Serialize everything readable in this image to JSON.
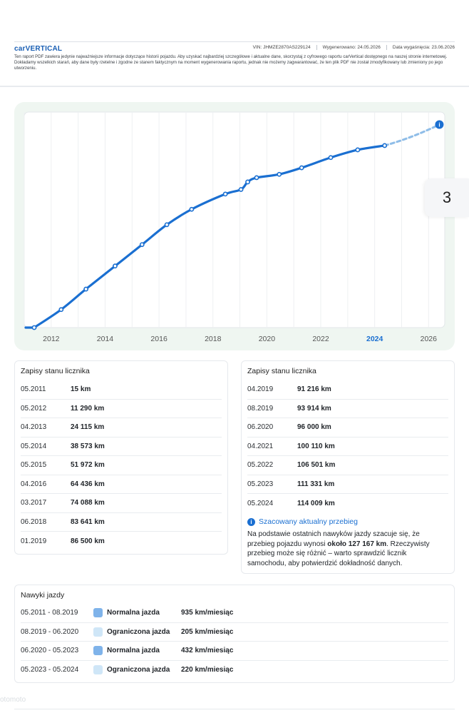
{
  "header": {
    "logo": "carVERTICAL",
    "vin_label": "VIN:",
    "vin": "JHMZE2870AS229124",
    "generated_label": "Wygenerowano:",
    "generated": "24.05.2026",
    "expires_label": "Data wygaśnięcia:",
    "expires": "23.06.2026",
    "disclaimer": "Ten raport PDF zawiera jedynie najważniejsze informacje dotyczące historii pojazdu. Aby uzyskać najbardziej szczegółowe i aktualne dane, skorzystaj z cyfrowego raportu carVertical dostępnego na naszej stronie internetowej. Dokładamy wszelkich starań, aby dane były rzetelne i zgodne ze stanem faktycznym na moment wygenerowania raportu, jednak nie możemy zagwarantować, że ten plik PDF nie został zmodyfikowany lub zmieniony po jego utworzeniu."
  },
  "page_number": "3",
  "chart_data": {
    "type": "line",
    "title": "",
    "xlabel": "",
    "ylabel": "",
    "x_ticks": [
      "2012",
      "2014",
      "2016",
      "2018",
      "2020",
      "2022",
      "2024",
      "2026"
    ],
    "highlight_tick": "2024",
    "xlim": [
      2011.0,
      2026.6
    ],
    "ylim": [
      0,
      135000
    ],
    "grid": true,
    "series": [
      {
        "style": "solid",
        "points": [
          {
            "x": 2011.37,
            "y": 15
          },
          {
            "x": 2012.37,
            "y": 11290
          },
          {
            "x": 2013.29,
            "y": 24115
          },
          {
            "x": 2014.37,
            "y": 38573
          },
          {
            "x": 2015.37,
            "y": 51972
          },
          {
            "x": 2016.29,
            "y": 64436
          },
          {
            "x": 2017.21,
            "y": 74088
          },
          {
            "x": 2018.46,
            "y": 83641
          },
          {
            "x": 2019.04,
            "y": 86500
          },
          {
            "x": 2019.29,
            "y": 91216
          },
          {
            "x": 2019.62,
            "y": 93914
          },
          {
            "x": 2020.46,
            "y": 96000
          },
          {
            "x": 2021.29,
            "y": 100110
          },
          {
            "x": 2022.37,
            "y": 106501
          },
          {
            "x": 2023.37,
            "y": 111331
          },
          {
            "x": 2024.37,
            "y": 114009
          }
        ]
      },
      {
        "style": "dashed",
        "points": [
          {
            "x": 2024.37,
            "y": 114009
          },
          {
            "x": 2026.4,
            "y": 127167
          }
        ]
      }
    ],
    "colors": {
      "line": "#1a6fd1",
      "projection": "#8fbde8",
      "marker": "#1a6fd1"
    }
  },
  "readings_left": {
    "title": "Zapisy stanu licznika",
    "rows": [
      {
        "date": "05.2011",
        "km": "15 km"
      },
      {
        "date": "05.2012",
        "km": "11 290 km"
      },
      {
        "date": "04.2013",
        "km": "24 115 km"
      },
      {
        "date": "05.2014",
        "km": "38 573 km"
      },
      {
        "date": "05.2015",
        "km": "51 972 km"
      },
      {
        "date": "04.2016",
        "km": "64 436 km"
      },
      {
        "date": "03.2017",
        "km": "74 088 km"
      },
      {
        "date": "06.2018",
        "km": "83 641 km"
      },
      {
        "date": "01.2019",
        "km": "86 500 km"
      }
    ]
  },
  "readings_right": {
    "title": "Zapisy stanu licznika",
    "rows": [
      {
        "date": "04.2019",
        "km": "91 216 km"
      },
      {
        "date": "08.2019",
        "km": "93 914 km"
      },
      {
        "date": "06.2020",
        "km": "96 000 km"
      },
      {
        "date": "04.2021",
        "km": "100 110 km"
      },
      {
        "date": "05.2022",
        "km": "106 501 km"
      },
      {
        "date": "05.2023",
        "km": "111 331 km"
      },
      {
        "date": "05.2024",
        "km": "114 009 km"
      }
    ],
    "estimate_title": "Szacowany aktualny przebieg",
    "estimate_text_1": "Na podstawie ostatnich nawyków jazdy szacuje się, że przebieg pojazdu wynosi ",
    "estimate_bold": "około 127 167 km",
    "estimate_text_2": ". Rzeczywisty przebieg może się różnić – warto sprawdzić licznik samochodu, aby potwierdzić dokładność danych."
  },
  "habits": {
    "title": "Nawyki jazdy",
    "rows": [
      {
        "period": "05.2011 - 08.2019",
        "label": "Normalna jazda",
        "rate": "935 km/miesiąc",
        "color": "#7fb3ea"
      },
      {
        "period": "08.2019 - 06.2020",
        "label": "Ograniczona jazda",
        "rate": "205 km/miesiąc",
        "color": "#cfe6f7"
      },
      {
        "period": "06.2020 - 05.2023",
        "label": "Normalna jazda",
        "rate": "432 km/miesiąc",
        "color": "#7fb3ea"
      },
      {
        "period": "05.2023 - 05.2024",
        "label": "Ograniczona jazda",
        "rate": "220 km/miesiąc",
        "color": "#cfe6f7"
      }
    ]
  },
  "watermark": "otomoto"
}
